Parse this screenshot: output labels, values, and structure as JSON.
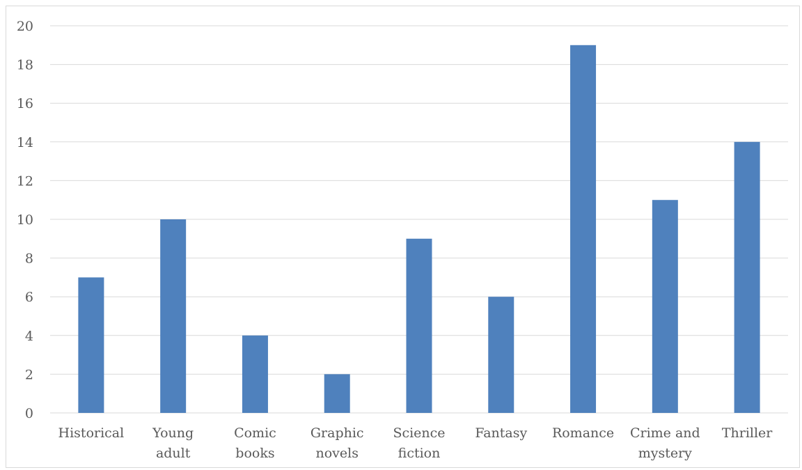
{
  "chart_data": {
    "type": "bar",
    "title": "",
    "xlabel": "",
    "ylabel": "",
    "categories": [
      [
        "Historical"
      ],
      [
        "Young",
        "adult"
      ],
      [
        "Comic",
        "books"
      ],
      [
        "Graphic",
        "novels"
      ],
      [
        "Science",
        "fiction"
      ],
      [
        "Fantasy"
      ],
      [
        "Romance"
      ],
      [
        "Crime and",
        "mystery"
      ],
      [
        "Thriller"
      ]
    ],
    "values": [
      7,
      10,
      4,
      2,
      9,
      6,
      19,
      11,
      14
    ],
    "ylim": [
      0,
      20
    ],
    "yticks": [
      0,
      2,
      4,
      6,
      8,
      10,
      12,
      14,
      16,
      18,
      20
    ],
    "grid": true,
    "legend": "none",
    "colors": {
      "bar": "#4f81bd",
      "grid": "#d9d9d9",
      "text": "#595959"
    }
  }
}
